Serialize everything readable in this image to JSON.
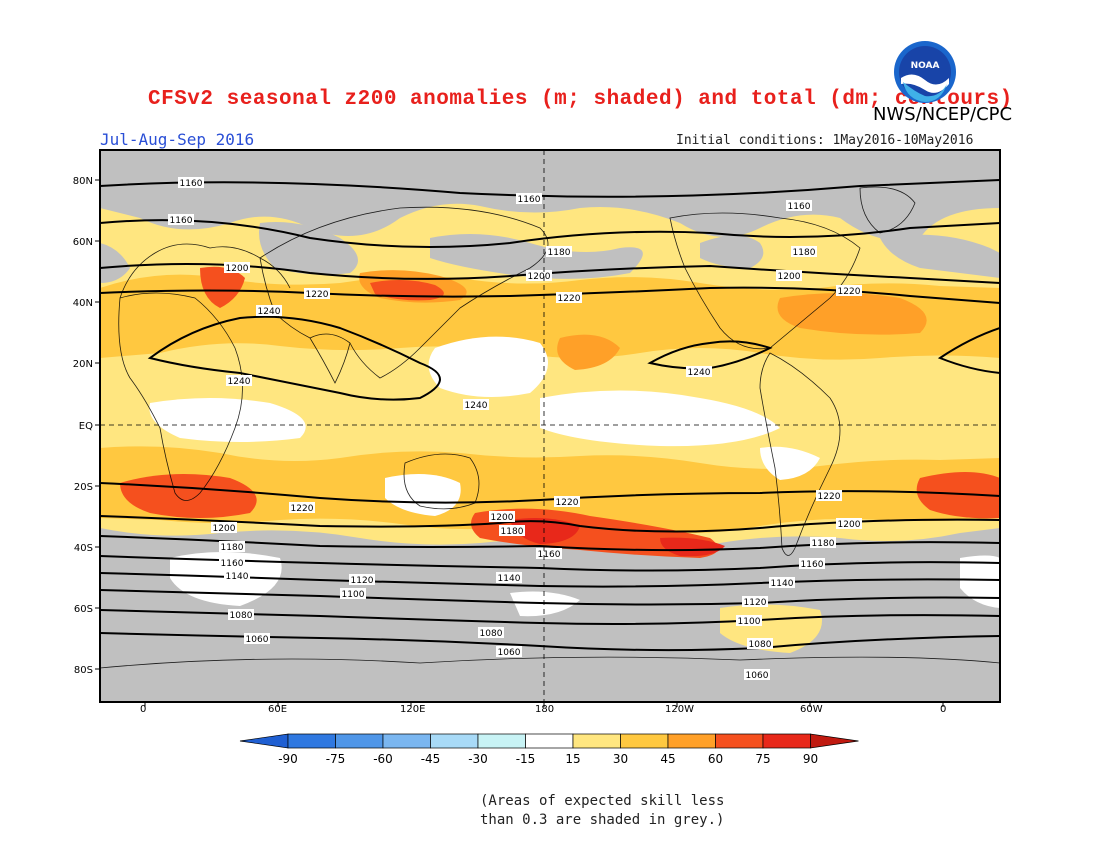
{
  "header": {
    "title": "CFSv2 seasonal z200 anomalies (m; shaded) and total (dm; contours)",
    "agency": "NWS/NCEP/CPC",
    "season": "Jul-Aug-Sep 2016",
    "initial_conditions": "Initial conditions: 1May2016-10May2016",
    "logo_text": "NOAA"
  },
  "map": {
    "lat_labels": [
      "80N",
      "60N",
      "40N",
      "20N",
      "EQ",
      "20S",
      "40S",
      "60S",
      "80S"
    ],
    "lon_labels": [
      "0",
      "60E",
      "120E",
      "180",
      "120W",
      "60W",
      "0"
    ],
    "contour_labels": [
      "1060",
      "1080",
      "1100",
      "1120",
      "1140",
      "1160",
      "1180",
      "1200",
      "1220",
      "1240"
    ],
    "colors": {
      "grey": "#c0c0c0",
      "light_yellow": "#ffe680",
      "yellow_orange": "#ffc840",
      "orange": "#ffa028",
      "red_orange": "#f5501e",
      "red": "#e8281a"
    }
  },
  "colorbar": {
    "ticks": [
      "-90",
      "-75",
      "-60",
      "-45",
      "-30",
      "-15",
      "15",
      "30",
      "45",
      "60",
      "75",
      "90"
    ],
    "colors": [
      "#1f5fd2",
      "#2f78e0",
      "#4f96e8",
      "#7ab6f0",
      "#a8daf7",
      "#c8f3f5",
      "#ffffff",
      "#ffe680",
      "#ffc840",
      "#ffa028",
      "#f5501e",
      "#e8281a",
      "#c01a10"
    ]
  },
  "footnote": {
    "line1": "(Areas of expected skill less",
    "line2": "than 0.3 are shaded in grey.)"
  }
}
